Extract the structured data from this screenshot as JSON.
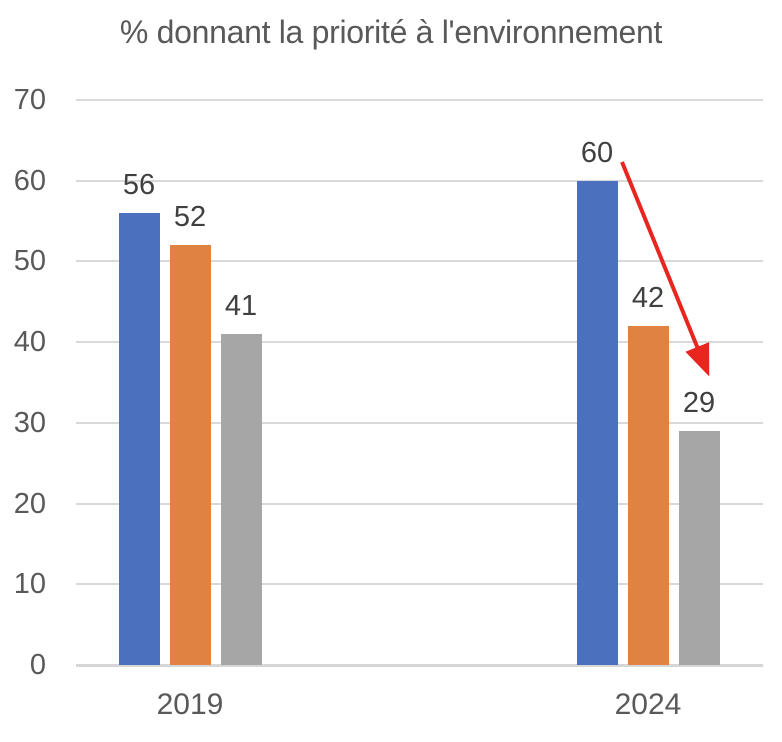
{
  "title": "% donnant la priorité à l'environnement",
  "chart_data": {
    "type": "bar",
    "title": "% donnant la priorité à l'environnement",
    "categories": [
      "2019",
      "2024"
    ],
    "series": [
      {
        "name": "blue",
        "color": "#4a70be",
        "values": [
          56,
          60
        ]
      },
      {
        "name": "orange",
        "color": "#e08241",
        "values": [
          52,
          42
        ]
      },
      {
        "name": "gray",
        "color": "#a6a6a6",
        "values": [
          41,
          29
        ]
      }
    ],
    "data_labels": [
      [
        "56",
        "52",
        "41"
      ],
      [
        "60",
        "42",
        "29"
      ]
    ],
    "ylim": [
      0,
      70
    ],
    "yticks": [
      0,
      10,
      20,
      30,
      40,
      50,
      60,
      70
    ],
    "xlabel": "",
    "ylabel": "",
    "grid": true,
    "legend": "none",
    "annotation": {
      "type": "arrow-down-trend",
      "color": "#e8251e",
      "from_value_label": "60",
      "to_value_label": "29"
    }
  },
  "colors": {
    "gridline": "#d9d9d9",
    "axis_line": "#d6d6d6",
    "title_text": "#595959",
    "tick_text": "#595959",
    "data_label_text": "#404040"
  }
}
